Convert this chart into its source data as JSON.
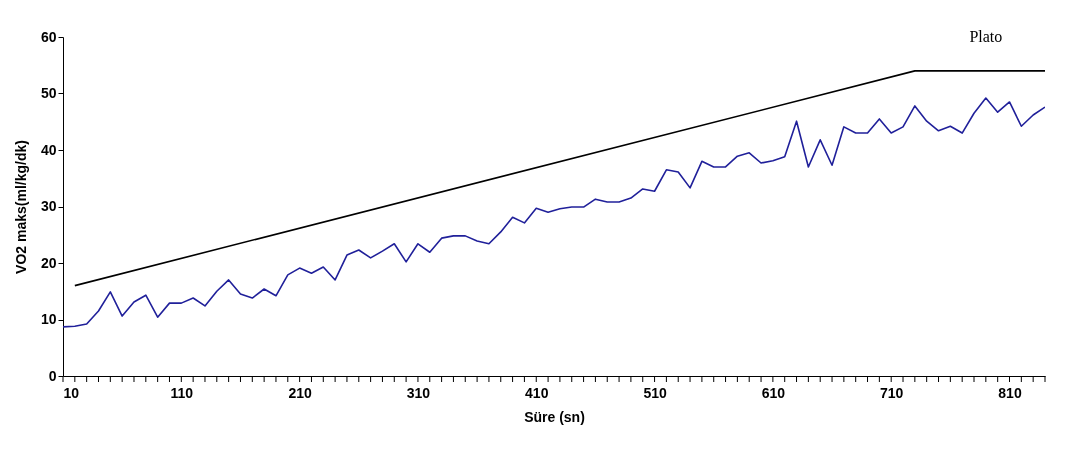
{
  "chart_data": {
    "type": "line",
    "xlabel": "Süre (sn)",
    "ylabel": "VO2 maks(ml/kg/dk)",
    "xlim": [
      10,
      840
    ],
    "ylim": [
      0,
      60
    ],
    "xticks": [
      10,
      {
        "value": 20,
        "label": null
      },
      {
        "value": 30,
        "label": null
      },
      {
        "value": 40,
        "label": null
      },
      {
        "value": 50,
        "label": null
      },
      {
        "value": 60,
        "label": null
      },
      {
        "value": 70,
        "label": null
      },
      {
        "value": 80,
        "label": null
      },
      {
        "value": 90,
        "label": null
      },
      {
        "value": 100,
        "label": null
      },
      110,
      {
        "value": 120,
        "label": null
      },
      {
        "value": 130,
        "label": null
      },
      {
        "value": 140,
        "label": null
      },
      {
        "value": 150,
        "label": null
      },
      {
        "value": 160,
        "label": null
      },
      {
        "value": 170,
        "label": null
      },
      {
        "value": 180,
        "label": null
      },
      {
        "value": 190,
        "label": null
      },
      {
        "value": 200,
        "label": null
      },
      210,
      {
        "value": 220,
        "label": null
      },
      {
        "value": 230,
        "label": null
      },
      {
        "value": 240,
        "label": null
      },
      {
        "value": 250,
        "label": null
      },
      {
        "value": 260,
        "label": null
      },
      {
        "value": 270,
        "label": null
      },
      {
        "value": 280,
        "label": null
      },
      {
        "value": 290,
        "label": null
      },
      {
        "value": 300,
        "label": null
      },
      310,
      {
        "value": 320,
        "label": null
      },
      {
        "value": 330,
        "label": null
      },
      {
        "value": 340,
        "label": null
      },
      {
        "value": 350,
        "label": null
      },
      {
        "value": 360,
        "label": null
      },
      {
        "value": 370,
        "label": null
      },
      {
        "value": 380,
        "label": null
      },
      {
        "value": 390,
        "label": null
      },
      {
        "value": 400,
        "label": null
      },
      410,
      {
        "value": 420,
        "label": null
      },
      {
        "value": 430,
        "label": null
      },
      {
        "value": 440,
        "label": null
      },
      {
        "value": 450,
        "label": null
      },
      {
        "value": 460,
        "label": null
      },
      {
        "value": 470,
        "label": null
      },
      {
        "value": 480,
        "label": null
      },
      {
        "value": 490,
        "label": null
      },
      {
        "value": 500,
        "label": null
      },
      510,
      {
        "value": 520,
        "label": null
      },
      {
        "value": 530,
        "label": null
      },
      {
        "value": 540,
        "label": null
      },
      {
        "value": 550,
        "label": null
      },
      {
        "value": 560,
        "label": null
      },
      {
        "value": 570,
        "label": null
      },
      {
        "value": 580,
        "label": null
      },
      {
        "value": 590,
        "label": null
      },
      {
        "value": 600,
        "label": null
      },
      610,
      {
        "value": 620,
        "label": null
      },
      {
        "value": 630,
        "label": null
      },
      {
        "value": 640,
        "label": null
      },
      {
        "value": 650,
        "label": null
      },
      {
        "value": 660,
        "label": null
      },
      {
        "value": 670,
        "label": null
      },
      {
        "value": 680,
        "label": null
      },
      {
        "value": 690,
        "label": null
      },
      {
        "value": 700,
        "label": null
      },
      710,
      {
        "value": 720,
        "label": null
      },
      {
        "value": 730,
        "label": null
      },
      {
        "value": 740,
        "label": null
      },
      {
        "value": 750,
        "label": null
      },
      {
        "value": 760,
        "label": null
      },
      {
        "value": 770,
        "label": null
      },
      {
        "value": 780,
        "label": null
      },
      {
        "value": 790,
        "label": null
      },
      {
        "value": 800,
        "label": null
      },
      810,
      {
        "value": 820,
        "label": null
      },
      {
        "value": 830,
        "label": null
      },
      {
        "value": 840,
        "label": null
      }
    ],
    "yticks": [
      0,
      10,
      20,
      30,
      40,
      50,
      60
    ],
    "grid": false,
    "series": [
      {
        "color": "#20209a",
        "x": [
          10,
          20,
          30,
          40,
          50,
          60,
          70,
          80,
          90,
          100,
          110,
          120,
          130,
          140,
          150,
          160,
          170,
          180,
          190,
          200,
          210,
          220,
          230,
          240,
          250,
          260,
          270,
          280,
          290,
          300,
          310,
          320,
          330,
          340,
          350,
          360,
          370,
          380,
          390,
          400,
          410,
          420,
          430,
          440,
          450,
          460,
          470,
          480,
          490,
          500,
          510,
          520,
          530,
          540,
          550,
          560,
          570,
          580,
          590,
          600,
          610,
          620,
          630,
          640,
          650,
          660,
          670,
          680,
          690,
          700,
          710,
          720,
          730,
          740,
          750,
          760,
          770,
          780,
          790,
          800,
          810,
          820,
          830,
          840
        ],
        "values": [
          8.7,
          8.8,
          9.2,
          11.5,
          14.9,
          10.6,
          13.1,
          14.3,
          10.4,
          12.9,
          12.9,
          13.8,
          12.4,
          15.0,
          17.0,
          14.5,
          13.8,
          15.4,
          14.2,
          17.9,
          19.1,
          18.2,
          19.3,
          17.0,
          21.4,
          22.3,
          20.9,
          22.1,
          23.4,
          20.2,
          23.4,
          21.9,
          24.4,
          24.8,
          24.8,
          23.9,
          23.4,
          25.5,
          28.1,
          27.1,
          29.7,
          29.0,
          29.6,
          29.9,
          29.9,
          31.3,
          30.8,
          30.8,
          31.5,
          33.1,
          32.7,
          36.5,
          36.1,
          33.3,
          38.0,
          37.0,
          37.0,
          38.9,
          39.5,
          37.7,
          38.1,
          38.8,
          45.1,
          37.0,
          41.8,
          37.3,
          44.1,
          43.0,
          43.0,
          45.5,
          43.0,
          44.1,
          47.8,
          45.1,
          43.4,
          44.2,
          43.0,
          46.5,
          49.2,
          46.7,
          48.5,
          44.2,
          46.2,
          47.6
        ]
      },
      {
        "color": "#000000",
        "x": [
          20,
          730,
          840
        ],
        "values": [
          16,
          54,
          54
        ]
      }
    ],
    "annotations": [
      {
        "text": "Plato",
        "x": 790,
        "y": 54
      }
    ]
  }
}
